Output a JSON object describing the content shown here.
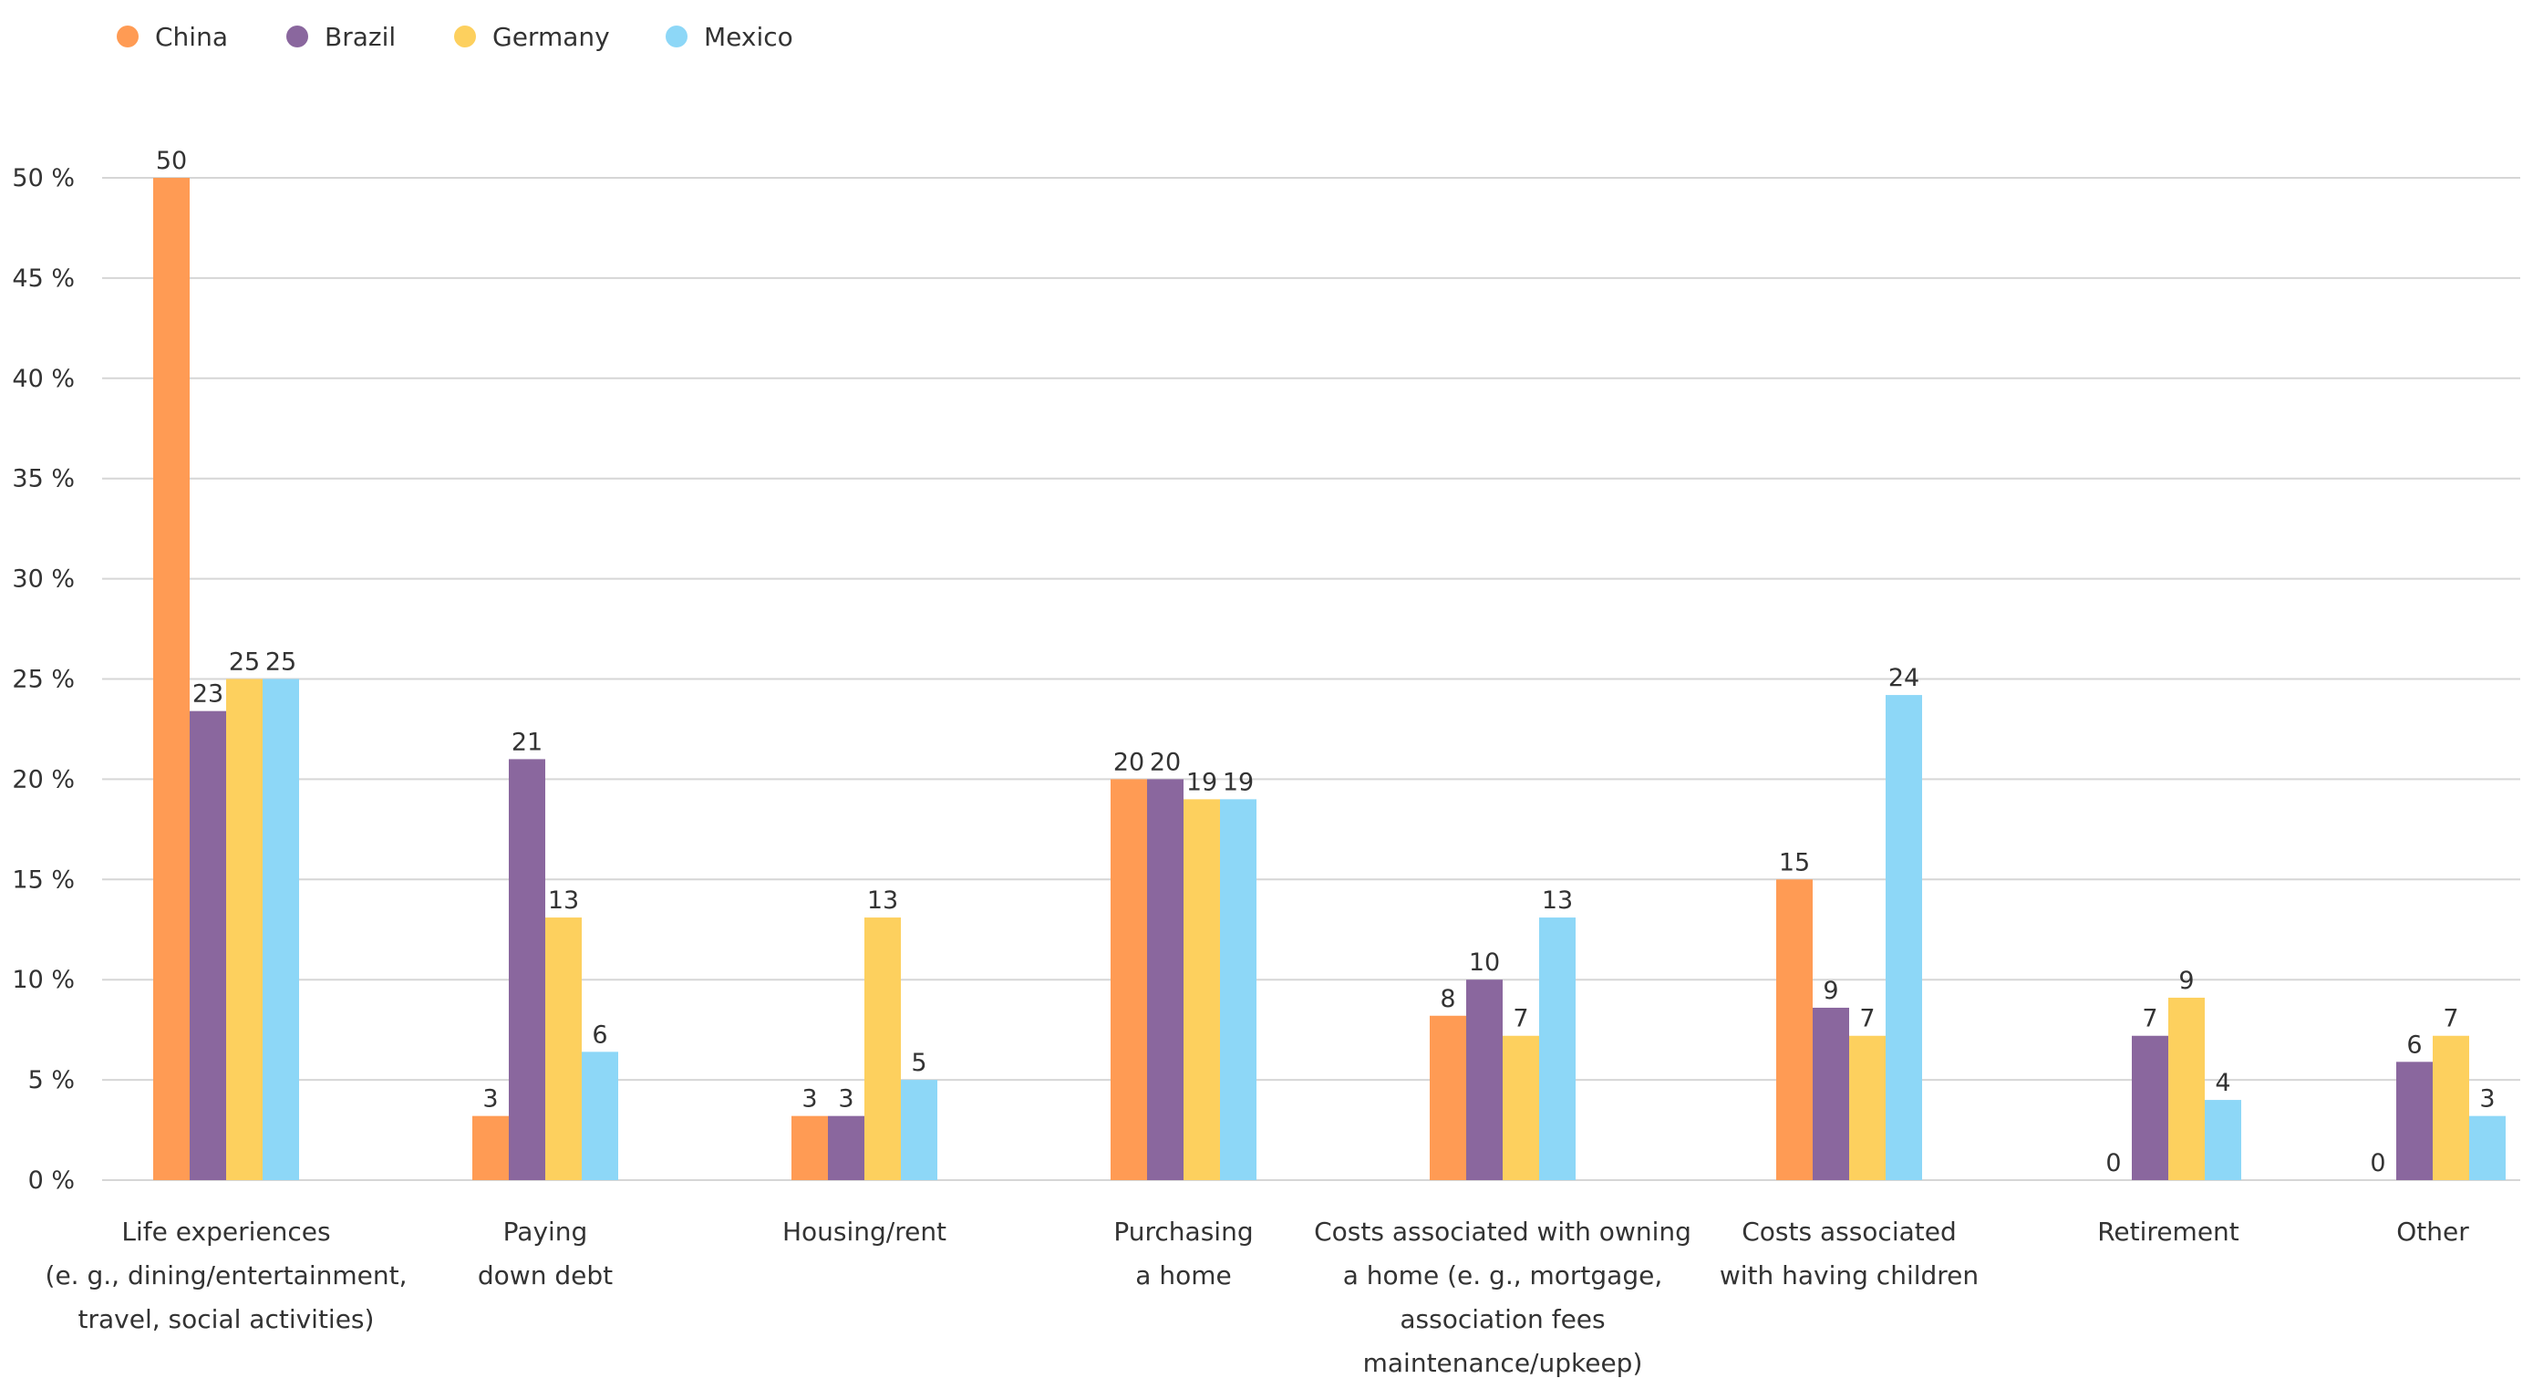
{
  "chart_data": {
    "type": "bar",
    "categories": [
      [
        "Life experiences",
        "(e. g., dining/entertainment,",
        "travel, social activities)"
      ],
      [
        "Paying",
        "down debt"
      ],
      [
        "Housing/rent"
      ],
      [
        "Purchasing",
        "a home"
      ],
      [
        "Costs associated with owning",
        "a home (e. g., mortgage,",
        "association fees",
        "maintenance/upkeep)"
      ],
      [
        "Costs associated",
        "with having children"
      ],
      [
        "Retirement"
      ],
      [
        "Other"
      ]
    ],
    "series": [
      {
        "name": "China",
        "color": "#FF9B54",
        "values": [
          50,
          3.2,
          3.2,
          20,
          8.2,
          15,
          0,
          0
        ],
        "labels": [
          "50",
          "3",
          "3",
          "20",
          "8",
          "15",
          "0",
          "0"
        ]
      },
      {
        "name": "Brazil",
        "color": "#8A679E",
        "values": [
          23.4,
          21,
          3.2,
          20,
          10,
          8.6,
          7.2,
          5.9
        ],
        "labels": [
          "23",
          "21",
          "3",
          "20",
          "10",
          "9",
          "7",
          "6"
        ]
      },
      {
        "name": "Germany",
        "color": "#FDD05E",
        "values": [
          25,
          13.1,
          13.1,
          19,
          7.2,
          7.2,
          9.1,
          7.2
        ],
        "labels": [
          "25",
          "13",
          "13",
          "19",
          "7",
          "7",
          "9",
          "7"
        ]
      },
      {
        "name": "Mexico",
        "color": "#8DD7F7",
        "values": [
          25,
          6.4,
          5,
          19,
          13.1,
          24.2,
          4,
          3.2
        ],
        "labels": [
          "25",
          "6",
          "5",
          "19",
          "13",
          "24",
          "4",
          "3"
        ]
      }
    ],
    "yticks": [
      "0 %",
      "5 %",
      "10 %",
      "15 %",
      "20 %",
      "25 %",
      "30 %",
      "35 %",
      "40 %",
      "45 %",
      "50 %"
    ],
    "ylim": [
      0,
      50
    ],
    "grid": true,
    "legend_position": "top-left"
  }
}
